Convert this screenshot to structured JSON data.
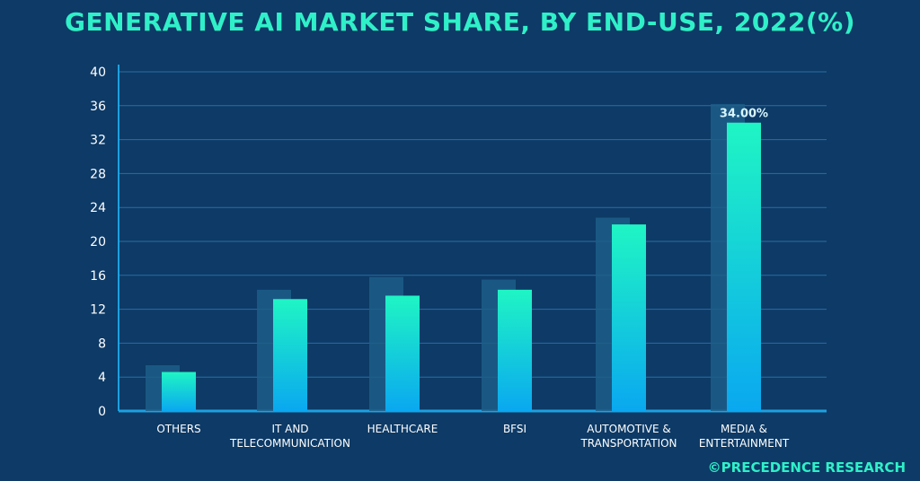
{
  "title": "GENERATIVE AI MARKET SHARE, BY END-USE, 2022(%)",
  "footer": "©PRECEDENCE RESEARCH",
  "chart_data": {
    "type": "bar",
    "categories": [
      [
        "OTHERS"
      ],
      [
        "IT AND",
        "TELECOMMUNICATION"
      ],
      [
        "HEALTHCARE"
      ],
      [
        "BFSI"
      ],
      [
        "AUTOMOTIVE &",
        "TRANSPORTATION"
      ],
      [
        "MEDIA &",
        "ENTERTAINMENT"
      ]
    ],
    "values": [
      4.6,
      13.2,
      13.6,
      14.3,
      22.0,
      34.0
    ],
    "shadow_values": [
      5.4,
      14.3,
      15.8,
      15.5,
      22.8,
      36.2
    ],
    "data_labels": [
      "",
      "",
      "",
      "",
      "",
      "34.00%"
    ],
    "yticks": [
      0,
      4,
      8,
      12,
      16,
      20,
      24,
      28,
      32,
      36,
      40
    ],
    "ylim": [
      0,
      40
    ],
    "grid": true,
    "colors": {
      "background": "#0d3a66",
      "grid": "#2a6ea3",
      "axis": "#1ea0e0",
      "text": "#ffffff",
      "title": "#2ff0c8",
      "bar_top": "#1ff5c4",
      "bar_bottom": "#0aa8f0",
      "shadow": "#1d5e88"
    }
  }
}
